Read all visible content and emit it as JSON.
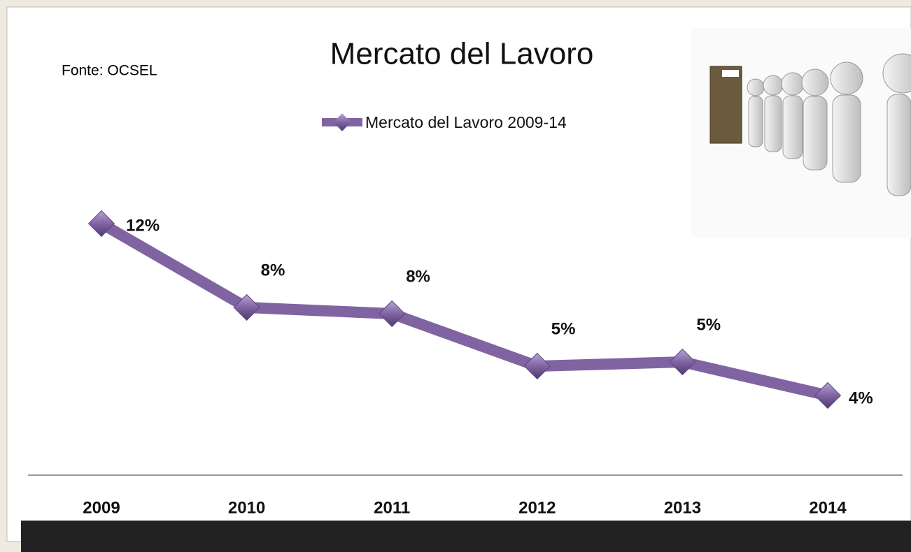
{
  "chart_data": {
    "type": "line",
    "title": "Mercato del Lavoro",
    "source": "Fonte: OCSEL",
    "categories": [
      "2009",
      "2010",
      "2011",
      "2012",
      "2013",
      "2014"
    ],
    "series": [
      {
        "name": "Mercato del Lavoro 2009-14",
        "color": "#8064a2",
        "values": [
          12,
          8,
          7.7,
          5.2,
          5.4,
          3.8
        ],
        "value_labels": [
          "12%",
          "8%",
          "8%",
          "5%",
          "5%",
          "4%"
        ]
      }
    ],
    "ylim": [
      0,
      13
    ]
  }
}
